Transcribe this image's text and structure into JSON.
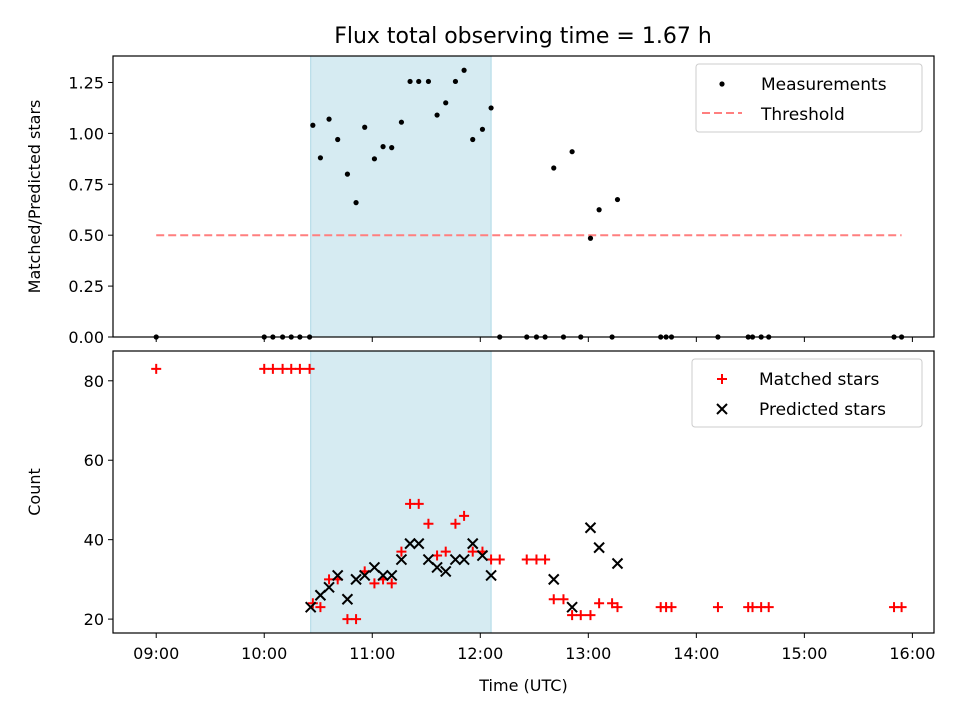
{
  "title": "Flux total observing time = 1.67 h",
  "colors": {
    "span": "#add8e6",
    "threshold": "#ff7f7f",
    "matched": "#ff0000",
    "predicted": "#000000",
    "measure": "#000000"
  },
  "chart_data": [
    {
      "type": "scatter",
      "ylabel": "Matched/Predicted stars",
      "ylim": [
        0,
        1.38
      ],
      "yticks": [
        0,
        0.25,
        0.5,
        0.75,
        1.0,
        1.25
      ],
      "ytick_labels": [
        "0.00",
        "0.25",
        "0.50",
        "0.75",
        "1.00",
        "1.25"
      ],
      "xlim": [
        8.6,
        16.2
      ],
      "highlight_span": [
        10.43,
        12.1
      ],
      "legend_position": "upper right",
      "legend": {
        "measurements": "Measurements",
        "threshold": "Threshold"
      },
      "threshold": {
        "y": 0.5,
        "x_range": [
          9.0,
          15.9
        ]
      },
      "measurements": [
        [
          9.0,
          0
        ],
        [
          10.0,
          0
        ],
        [
          10.08,
          0
        ],
        [
          10.17,
          0
        ],
        [
          10.25,
          0
        ],
        [
          10.33,
          0
        ],
        [
          10.42,
          0
        ],
        [
          10.45,
          1.04
        ],
        [
          10.52,
          0.88
        ],
        [
          10.6,
          1.07
        ],
        [
          10.68,
          0.97
        ],
        [
          10.77,
          0.8
        ],
        [
          10.85,
          0.66
        ],
        [
          10.93,
          1.03
        ],
        [
          11.02,
          0.875
        ],
        [
          11.1,
          0.935
        ],
        [
          11.18,
          0.93
        ],
        [
          11.27,
          1.055
        ],
        [
          11.35,
          1.255
        ],
        [
          11.43,
          1.255
        ],
        [
          11.52,
          1.255
        ],
        [
          11.6,
          1.09
        ],
        [
          11.68,
          1.15
        ],
        [
          11.77,
          1.255
        ],
        [
          11.85,
          1.31
        ],
        [
          11.93,
          0.97
        ],
        [
          12.02,
          1.02
        ],
        [
          12.1,
          1.125
        ],
        [
          12.18,
          0
        ],
        [
          12.43,
          0
        ],
        [
          12.52,
          0
        ],
        [
          12.6,
          0
        ],
        [
          12.68,
          0.83
        ],
        [
          12.77,
          0
        ],
        [
          12.85,
          0.91
        ],
        [
          12.93,
          0
        ],
        [
          13.02,
          0.485
        ],
        [
          13.1,
          0.625
        ],
        [
          13.22,
          0
        ],
        [
          13.27,
          0.675
        ],
        [
          13.67,
          0
        ],
        [
          13.72,
          0
        ],
        [
          13.77,
          0
        ],
        [
          14.2,
          0
        ],
        [
          14.48,
          0
        ],
        [
          14.52,
          0
        ],
        [
          14.6,
          0
        ],
        [
          14.67,
          0
        ],
        [
          15.83,
          0
        ],
        [
          15.9,
          0
        ]
      ]
    },
    {
      "type": "scatter",
      "xlabel": "Time (UTC)",
      "ylabel": "Count",
      "ylim": [
        16.5,
        87.5
      ],
      "yticks": [
        20,
        40,
        60,
        80
      ],
      "ytick_labels": [
        "20",
        "40",
        "60",
        "80"
      ],
      "xlim": [
        8.6,
        16.2
      ],
      "xticks": [
        9,
        10,
        11,
        12,
        13,
        14,
        15,
        16
      ],
      "xtick_labels": [
        "09:00",
        "10:00",
        "11:00",
        "12:00",
        "13:00",
        "14:00",
        "15:00",
        "16:00"
      ],
      "highlight_span": [
        10.43,
        12.1
      ],
      "legend_position": "upper right",
      "legend": {
        "matched": "Matched stars",
        "predicted": "Predicted stars"
      },
      "matched": [
        [
          9.0,
          83
        ],
        [
          10.0,
          83
        ],
        [
          10.08,
          83
        ],
        [
          10.17,
          83
        ],
        [
          10.25,
          83
        ],
        [
          10.33,
          83
        ],
        [
          10.42,
          83
        ],
        [
          10.45,
          24
        ],
        [
          10.52,
          23
        ],
        [
          10.6,
          30
        ],
        [
          10.68,
          30
        ],
        [
          10.77,
          20
        ],
        [
          10.85,
          20
        ],
        [
          10.93,
          32
        ],
        [
          11.02,
          29
        ],
        [
          11.1,
          30
        ],
        [
          11.18,
          29
        ],
        [
          11.27,
          37
        ],
        [
          11.35,
          49
        ],
        [
          11.43,
          49
        ],
        [
          11.52,
          44
        ],
        [
          11.6,
          36
        ],
        [
          11.68,
          37
        ],
        [
          11.77,
          44
        ],
        [
          11.85,
          46
        ],
        [
          11.93,
          37
        ],
        [
          12.02,
          37
        ],
        [
          12.1,
          35
        ],
        [
          12.18,
          35
        ],
        [
          12.43,
          35
        ],
        [
          12.52,
          35
        ],
        [
          12.6,
          35
        ],
        [
          12.68,
          25
        ],
        [
          12.77,
          25
        ],
        [
          12.85,
          21
        ],
        [
          12.93,
          21
        ],
        [
          13.02,
          21
        ],
        [
          13.1,
          24
        ],
        [
          13.22,
          24
        ],
        [
          13.27,
          23
        ],
        [
          13.67,
          23
        ],
        [
          13.72,
          23
        ],
        [
          13.77,
          23
        ],
        [
          14.2,
          23
        ],
        [
          14.48,
          23
        ],
        [
          14.52,
          23
        ],
        [
          14.6,
          23
        ],
        [
          14.67,
          23
        ],
        [
          15.83,
          23
        ],
        [
          15.9,
          23
        ]
      ],
      "predicted": [
        [
          10.43,
          23
        ],
        [
          10.52,
          26
        ],
        [
          10.6,
          28
        ],
        [
          10.68,
          31
        ],
        [
          10.77,
          25
        ],
        [
          10.85,
          30
        ],
        [
          10.93,
          31
        ],
        [
          11.02,
          33
        ],
        [
          11.1,
          31
        ],
        [
          11.18,
          31
        ],
        [
          11.27,
          35
        ],
        [
          11.35,
          39
        ],
        [
          11.43,
          39
        ],
        [
          11.52,
          35
        ],
        [
          11.6,
          33
        ],
        [
          11.68,
          32
        ],
        [
          11.77,
          35
        ],
        [
          11.85,
          35
        ],
        [
          11.93,
          39
        ],
        [
          12.02,
          36
        ],
        [
          12.1,
          31
        ],
        [
          12.68,
          30
        ],
        [
          12.85,
          23
        ],
        [
          13.02,
          43
        ],
        [
          13.1,
          38
        ],
        [
          13.27,
          34
        ]
      ]
    }
  ]
}
